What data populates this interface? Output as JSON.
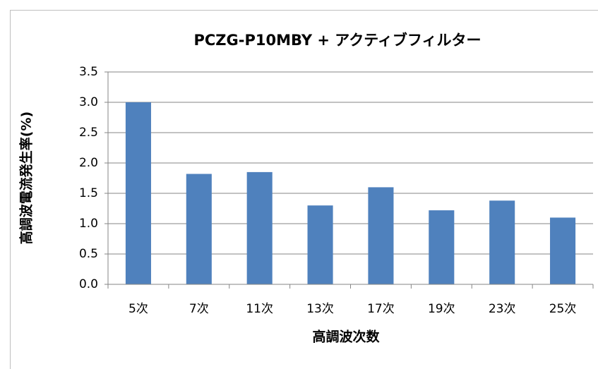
{
  "chart_data": {
    "type": "bar",
    "title": "PCZG-P10MBY + アクティブフィルター",
    "x_label": "高調波次数",
    "y_label": "高調波電流発生率(%)",
    "categories": [
      "5次",
      "7次",
      "11次",
      "13次",
      "17次",
      "19次",
      "23次",
      "25次"
    ],
    "values": [
      3.0,
      1.82,
      1.85,
      1.3,
      1.6,
      1.22,
      1.38,
      1.1
    ],
    "color": "#4f81bd",
    "ylim": [
      0,
      3.5
    ],
    "yticks": [
      {
        "value": 0,
        "label": "0.0"
      },
      {
        "value": 0.5,
        "label": "0.5"
      },
      {
        "value": 1,
        "label": "1.0"
      },
      {
        "value": 1.5,
        "label": "1.5"
      },
      {
        "value": 2,
        "label": "2.0"
      },
      {
        "value": 2.5,
        "label": "2.5"
      },
      {
        "value": 3,
        "label": "3.0"
      },
      {
        "value": 3.5,
        "label": "3.5"
      }
    ],
    "grid": true
  }
}
